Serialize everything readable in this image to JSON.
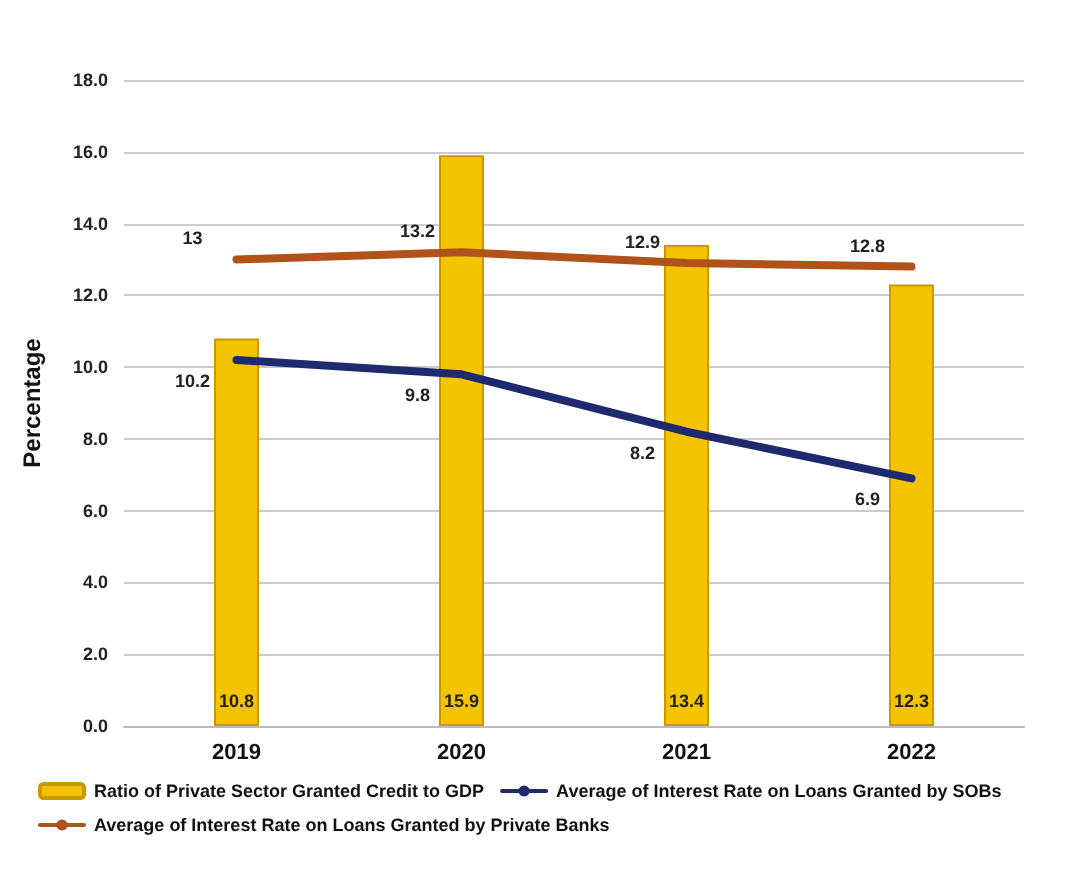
{
  "chart_data": {
    "type": "bar",
    "ylabel": "Percentage",
    "categories": [
      "2019",
      "2020",
      "2021",
      "2022"
    ],
    "series": [
      {
        "name": "Ratio of Private Sector Granted Credit to GDP",
        "color": "#f5c400",
        "values": [
          10.8,
          15.9,
          13.4,
          12.3
        ]
      },
      {
        "name": "Average of Interest Rate on Loans Granted by SOBs",
        "type": "line",
        "color": "#1f2a6e",
        "values": [
          10.2,
          9.8,
          8.2,
          6.9
        ]
      },
      {
        "name": "Average of Interest Rate on Loans Granted by Private Banks",
        "type": "line",
        "color": "#b0521a",
        "values": [
          13,
          13.2,
          12.9,
          12.8
        ]
      }
    ],
    "ylim": [
      0,
      18
    ],
    "yticks": [
      {
        "value": 0,
        "label": "0.0"
      },
      {
        "value": 2,
        "label": "2.0"
      },
      {
        "value": 4,
        "label": "4.0"
      },
      {
        "value": 6,
        "label": "6.0"
      },
      {
        "value": 8,
        "label": "8.0"
      },
      {
        "value": 10,
        "label": "10.0"
      },
      {
        "value": 12,
        "label": "12.0"
      },
      {
        "value": 14,
        "label": "14.0"
      },
      {
        "value": 16,
        "label": "16.0"
      },
      {
        "value": 18,
        "label": "18.0"
      }
    ],
    "grid": "y",
    "legend": "bottom",
    "data_labels": true,
    "marker": "none",
    "line_style": "solid"
  }
}
